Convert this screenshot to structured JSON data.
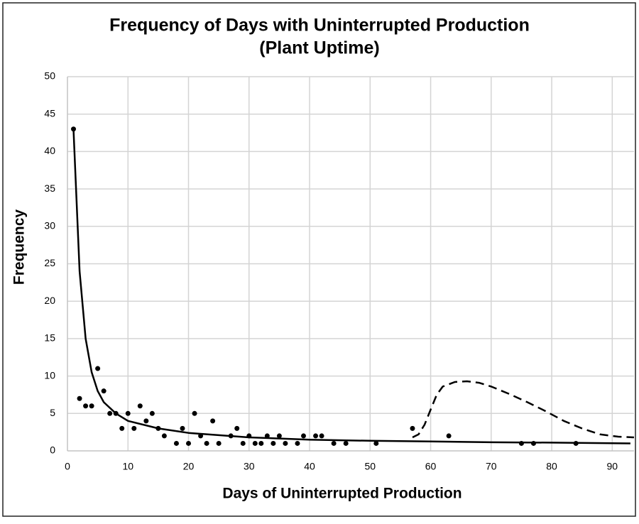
{
  "chart_data": {
    "type": "scatter",
    "title": [
      "Frequency of Days with Uninterrupted Production",
      "(Plant Uptime)"
    ],
    "x_label": "Days of Uninterrupted Production",
    "y_label": "Frequency",
    "xlim": [
      0,
      93.6
    ],
    "ylim": [
      0,
      50
    ],
    "xticks": [
      0,
      10,
      20,
      30,
      40,
      50,
      60,
      70,
      80,
      90
    ],
    "yticks": [
      0,
      5,
      10,
      15,
      20,
      25,
      30,
      35,
      40,
      45,
      50
    ],
    "grid": true,
    "series": [
      {
        "kind": "points",
        "color": "#000000",
        "x": [
          1,
          2,
          3,
          4,
          5,
          6,
          7,
          8,
          9,
          10,
          11,
          12,
          13,
          14,
          15,
          16,
          18,
          19,
          20,
          21,
          22,
          23,
          24,
          25,
          27,
          28,
          29,
          30,
          31,
          32,
          33,
          34,
          35,
          36,
          38,
          39,
          41,
          42,
          44,
          46,
          51,
          57,
          63,
          75,
          77,
          84
        ],
        "values": [
          43,
          7,
          6,
          6,
          11,
          8,
          5,
          5,
          3,
          5,
          3,
          6,
          4,
          5,
          3,
          2,
          1,
          3,
          1,
          5,
          2,
          1,
          4,
          1,
          2,
          3,
          1,
          2,
          1,
          1,
          2,
          1,
          2,
          1,
          1,
          2,
          2,
          2,
          1,
          1,
          1,
          3,
          2,
          1,
          1,
          1
        ]
      },
      {
        "kind": "line",
        "color": "#000000",
        "dash": false,
        "x": [
          1,
          2,
          3,
          4,
          5,
          6,
          8,
          10,
          15,
          20,
          30,
          40,
          50,
          60,
          70,
          80,
          93
        ],
        "values": [
          43,
          24,
          15,
          10.5,
          8,
          6.5,
          5,
          4,
          3,
          2.4,
          1.8,
          1.5,
          1.35,
          1.25,
          1.15,
          1.1,
          1.0
        ]
      },
      {
        "kind": "line",
        "color": "#000000",
        "dash": true,
        "x": [
          57,
          58,
          59,
          60,
          61,
          62,
          64,
          66,
          68,
          70,
          73,
          76,
          79,
          82,
          85,
          88,
          91,
          93.6
        ],
        "values": [
          1.8,
          2.2,
          3.5,
          5.5,
          7.5,
          8.6,
          9.2,
          9.3,
          9.1,
          8.6,
          7.6,
          6.5,
          5.3,
          4,
          3,
          2.2,
          1.9,
          1.8
        ]
      }
    ]
  }
}
